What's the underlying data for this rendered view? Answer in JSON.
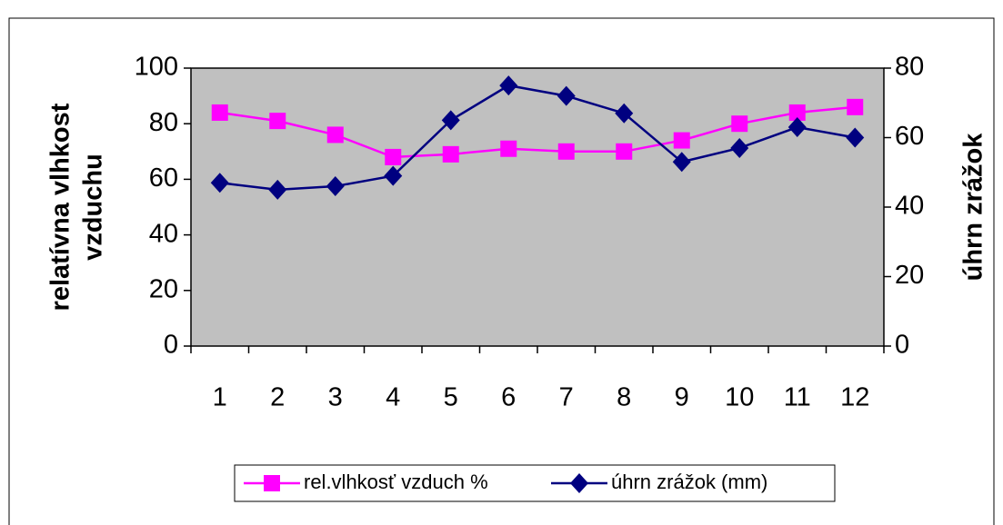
{
  "chart_data": {
    "type": "line",
    "categories": [
      "1",
      "2",
      "3",
      "4",
      "5",
      "6",
      "7",
      "8",
      "9",
      "10",
      "11",
      "12"
    ],
    "ylabel": [
      "relatívna vlhkost",
      "vzduchu"
    ],
    "y2label": "úhrn zrážok",
    "ylim": [
      0,
      100
    ],
    "yticks": [
      0,
      20,
      40,
      60,
      80,
      100
    ],
    "y2lim": [
      0,
      80
    ],
    "y2ticks": [
      0,
      20,
      40,
      60,
      80
    ],
    "legend": "bottom",
    "series": [
      {
        "name": "rel.vlhkosť vzduch %",
        "color": "#ff00ff",
        "marker": "square",
        "values": [
          84,
          81,
          76,
          68,
          69,
          71,
          70,
          70,
          74,
          80,
          84,
          86
        ]
      },
      {
        "name": "úhrn zrážok (mm)",
        "color": "#000080",
        "marker": "diamond",
        "axis": "y2",
        "values": [
          47,
          45,
          46,
          49,
          65,
          75,
          72,
          67,
          53,
          57,
          63,
          60
        ]
      }
    ]
  }
}
